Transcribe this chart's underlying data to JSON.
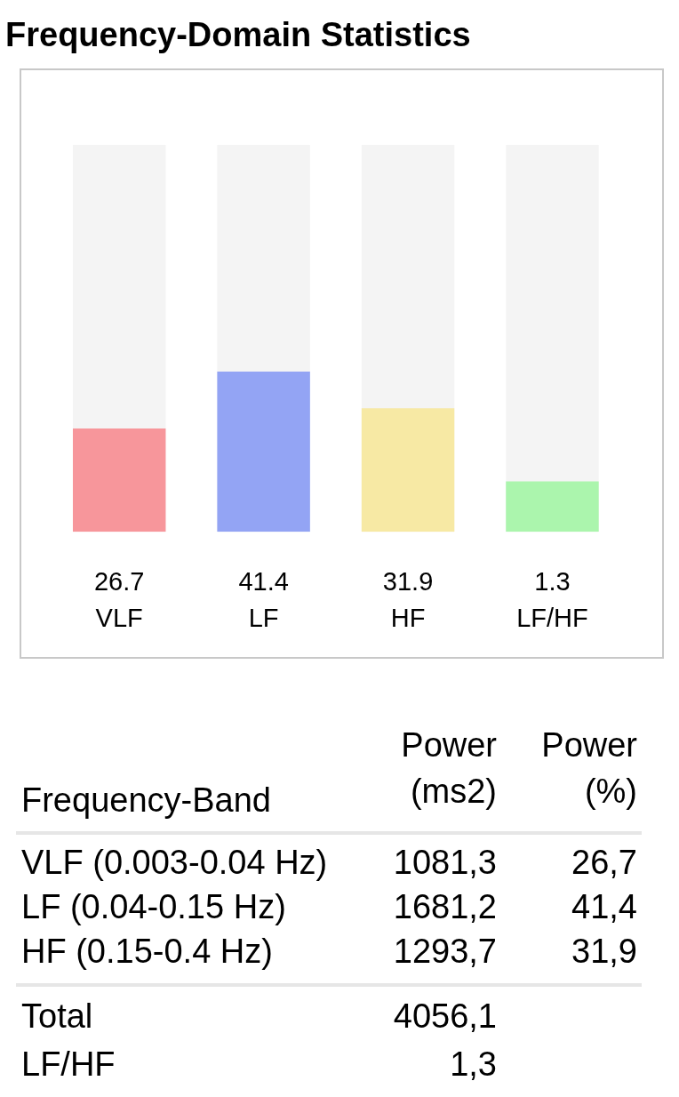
{
  "chart_data": [
    {
      "type": "bar",
      "title": "Frequency-Domain Statistics",
      "categories": [
        "VLF",
        "LF",
        "HF",
        "LF/HF"
      ],
      "series": [
        {
          "colors": [
            "#f7969b",
            "#93a4f4",
            "#f7e9a4",
            null
          ],
          "values": [
            26.7,
            41.4,
            31.9,
            null
          ]
        },
        {
          "axis": "y2",
          "color": "#abf5ad",
          "values": [
            null,
            null,
            null,
            1.3
          ]
        }
      ],
      "ylim": [
        0,
        100
      ],
      "y2lim": [
        0,
        10
      ],
      "data_labels": true,
      "tick_labels": "x"
    },
    {
      "type": "other",
      "xlabel": "Frequency-Band",
      "categories": [
        "VLF (0.003-0.04 Hz)",
        "LF (0.04-0.15 Hz)",
        "HF (0.15-0.4 Hz)",
        "Total",
        "LF/HF"
      ],
      "series": [
        {
          "name": "Power (ms2)",
          "values": [
            1081.3,
            1681.2,
            1293.7,
            4056.1,
            1.3
          ],
          "value_labels": [
            "1081,3",
            "1681,2",
            "1293,7",
            "4056,1",
            "1,3"
          ]
        },
        {
          "name": "Power (%)",
          "values": [
            26.7,
            41.4,
            31.9,
            null,
            null
          ],
          "value_labels": [
            "26,7",
            "41,4",
            "31,9",
            null,
            null
          ]
        }
      ]
    }
  ]
}
